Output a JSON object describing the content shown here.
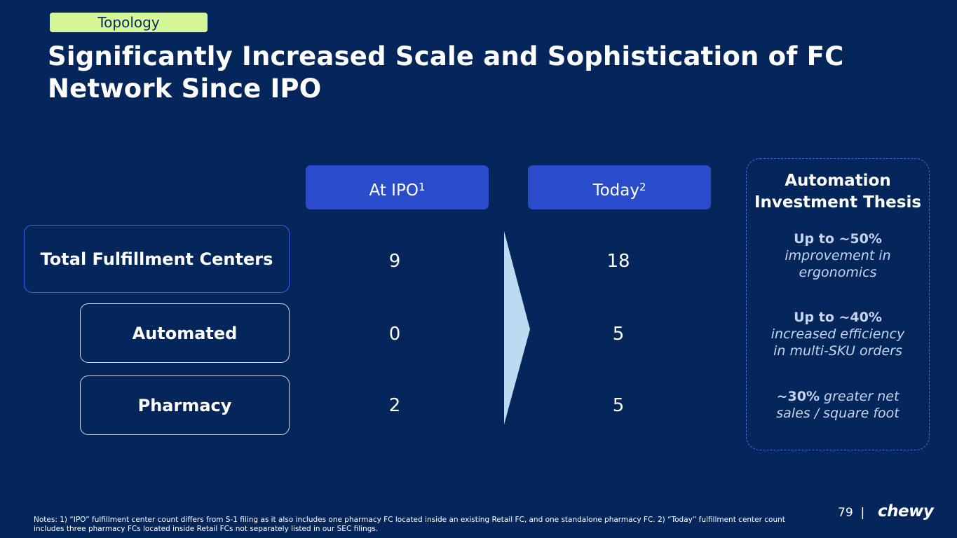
{
  "tag": "Topology",
  "title": "Significantly Increased Scale and Sophistication of FC Network Since IPO",
  "columns": {
    "ipo": {
      "label": "At IPO",
      "sup": "1"
    },
    "today": {
      "label": "Today",
      "sup": "2"
    }
  },
  "rows": [
    {
      "label": "Total Fulfillment Centers",
      "ipo": "9",
      "today": "18"
    },
    {
      "label": "Automated",
      "ipo": "0",
      "today": "5"
    },
    {
      "label": "Pharmacy",
      "ipo": "2",
      "today": "5"
    }
  ],
  "thesis": {
    "title": "Automation Investment Thesis",
    "stats": [
      {
        "highlight": "Up to ~50%",
        "desc": "improvement in ergonomics"
      },
      {
        "highlight": "Up to ~40%",
        "desc": "increased efficiency in multi-SKU orders"
      },
      {
        "highlight": "~30%",
        "desc": "greater net sales / square foot"
      }
    ]
  },
  "notes": "Notes: 1) “IPO” fulfillment center count differs from S-1 filing as it also includes one pharmacy FC located inside an existing Retail FC, and one standalone pharmacy FC. 2) “Today” fulfillment center count includes three pharmacy FCs located inside Retail FCs not separately listed in our SEC filings.",
  "footer": {
    "page": "79",
    "separator": "|",
    "logo": "chewy"
  },
  "colors": {
    "background": "#05265a",
    "tag": "#d4f797",
    "header": "#2a4ccb",
    "arrow": "#bcdaf0"
  }
}
